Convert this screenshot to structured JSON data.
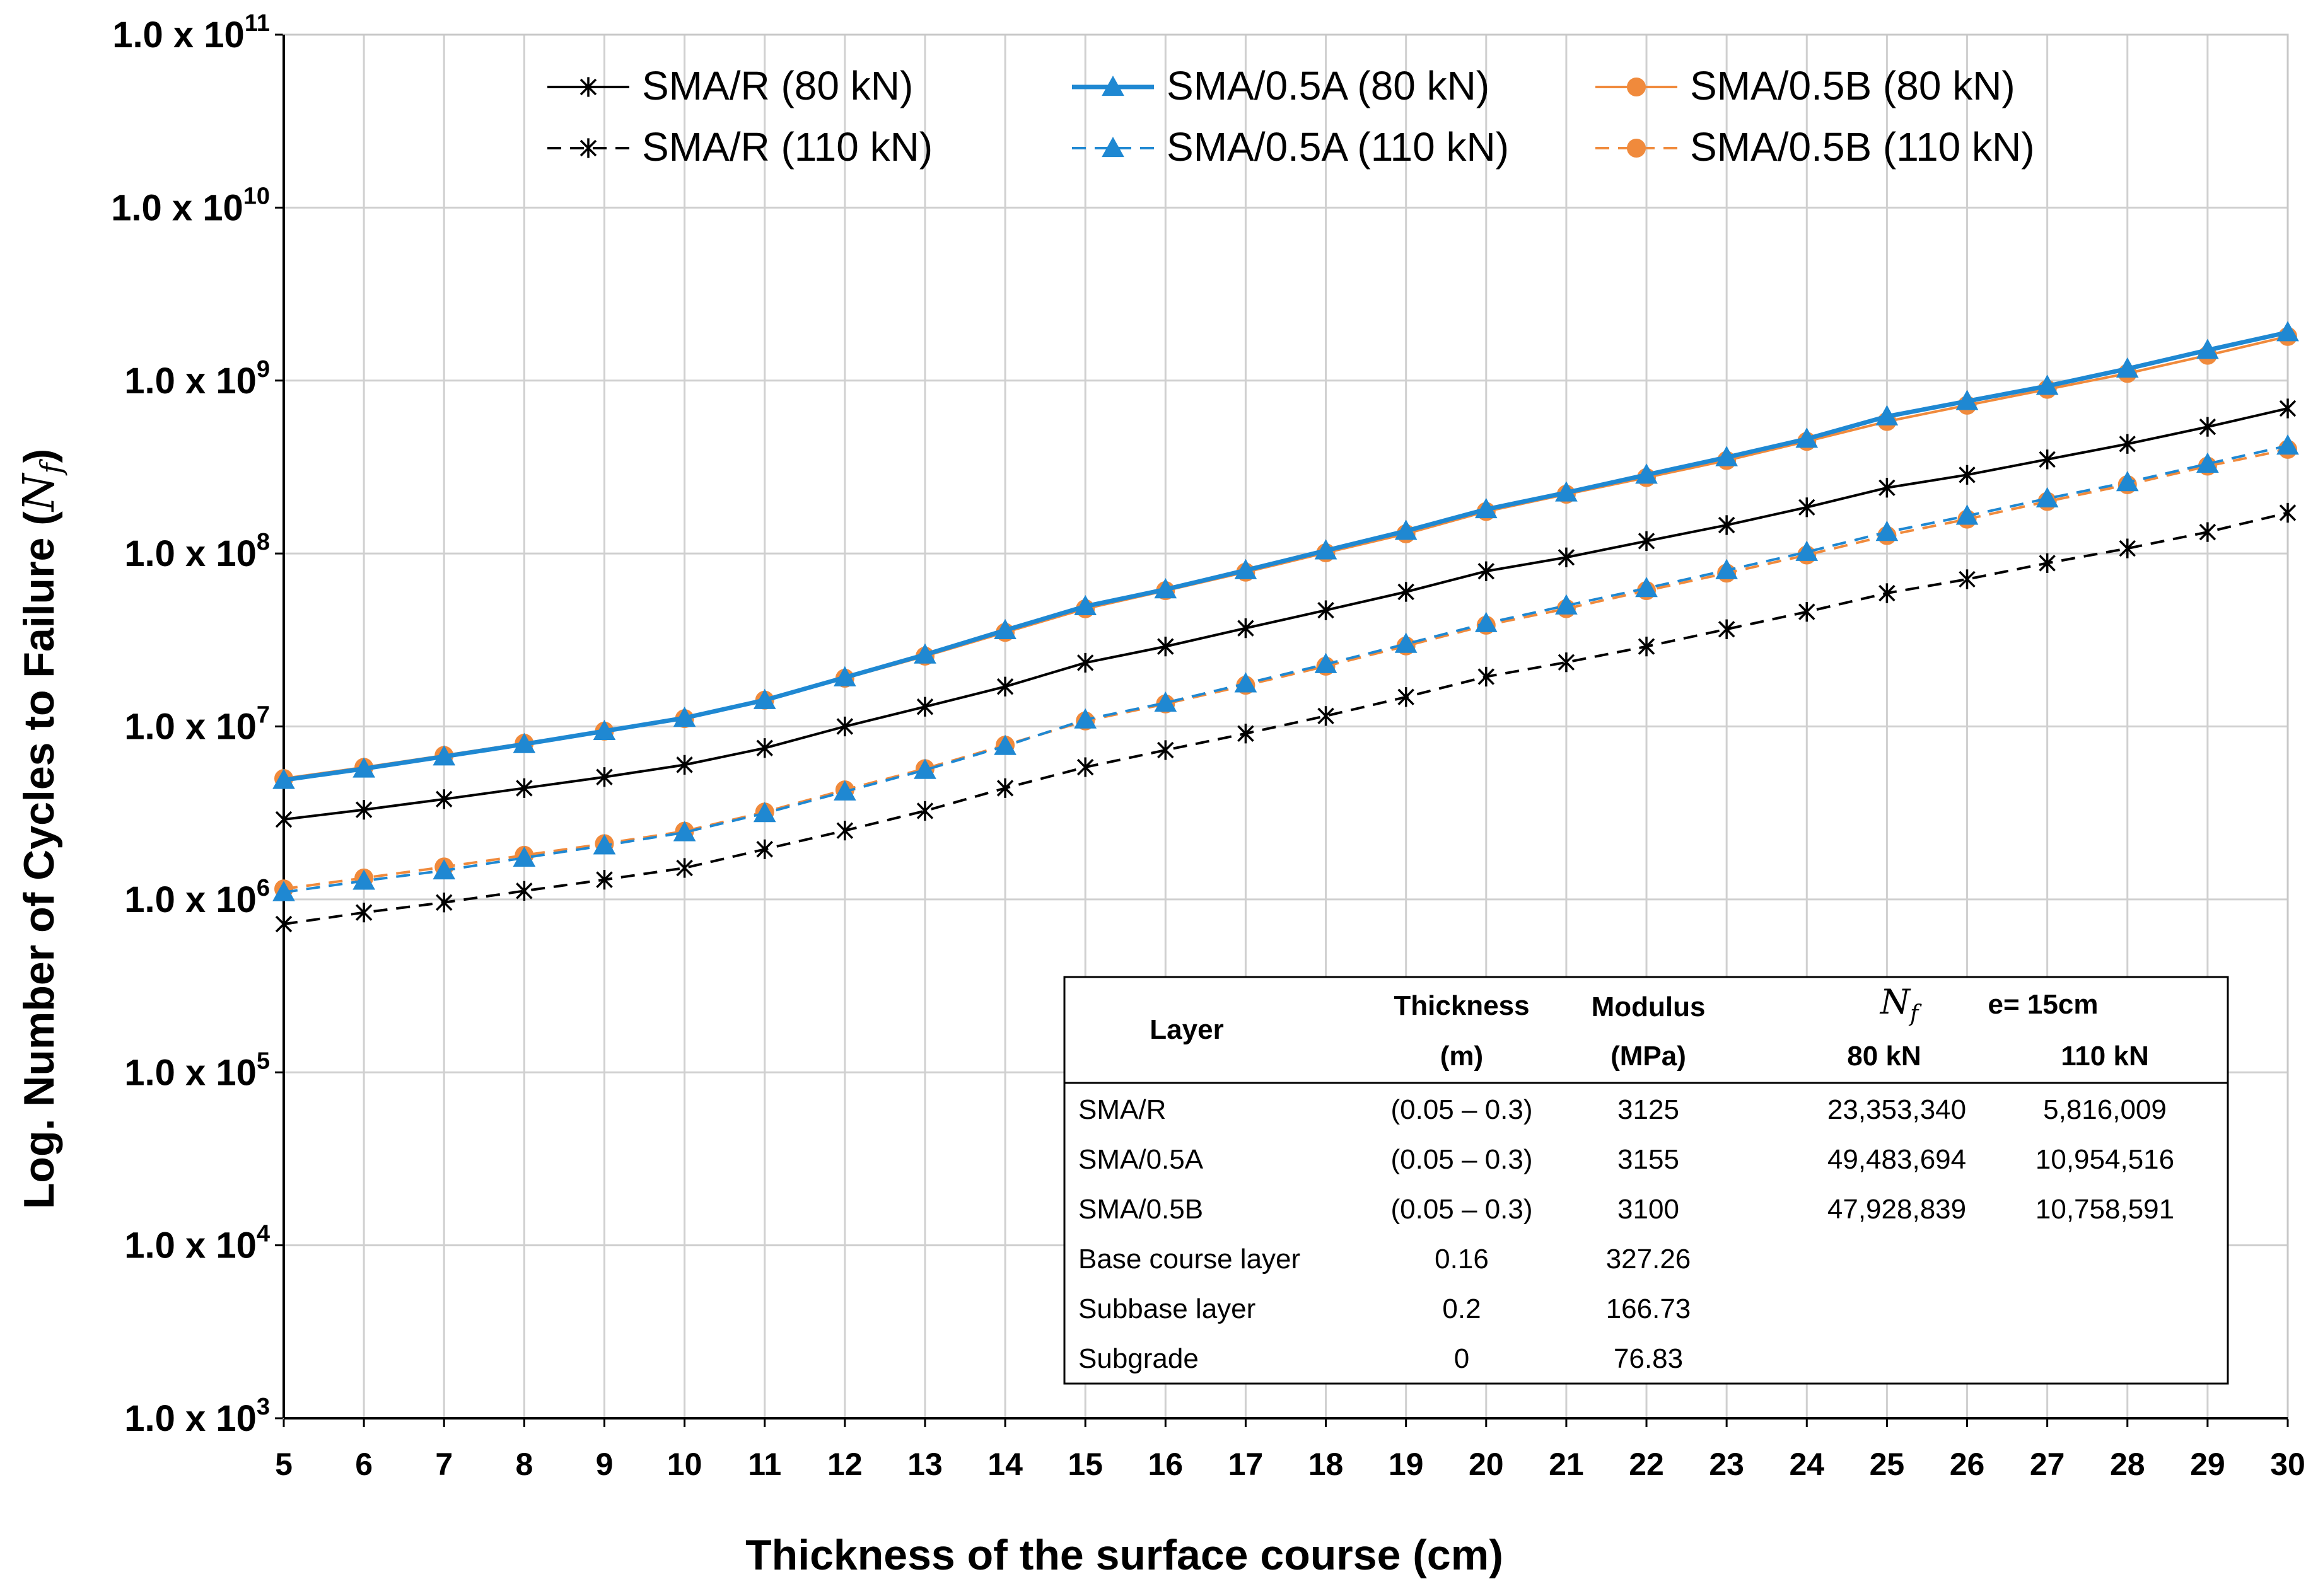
{
  "chart_data": {
    "type": "line",
    "xlabel": "Thickness of the surface course (cm)",
    "ylabel_prefix": "Log. Number of Cycles to Failure (",
    "ylabel_symbol": "N",
    "ylabel_sub": "f",
    "ylabel_suffix": ")",
    "y_scale": "log",
    "ylim": [
      1000,
      100000000000
    ],
    "xlim": [
      5,
      30
    ],
    "x": [
      5,
      6,
      7,
      8,
      9,
      10,
      11,
      12,
      13,
      14,
      15,
      16,
      17,
      18,
      19,
      20,
      21,
      22,
      23,
      24,
      25,
      26,
      27,
      28,
      29,
      30
    ],
    "y_tick_labels": [
      {
        "base": "1.0 x 10",
        "exp": "3"
      },
      {
        "base": "1.0 x 10",
        "exp": "4"
      },
      {
        "base": "1.0 x 10",
        "exp": "5"
      },
      {
        "base": "1.0 x 10",
        "exp": "6"
      },
      {
        "base": "1.0 x 10",
        "exp": "7"
      },
      {
        "base": "1.0 x 10",
        "exp": "8"
      },
      {
        "base": "1.0 x 10",
        "exp": "9"
      },
      {
        "base": "1.0 x 10",
        "exp": "10"
      },
      {
        "base": "1.0 x 10",
        "exp": "11"
      }
    ],
    "x_tick_labels": [
      "5",
      "6",
      "7",
      "8",
      "9",
      "10",
      "11",
      "12",
      "13",
      "14",
      "15",
      "16",
      "17",
      "18",
      "19",
      "20",
      "21",
      "22",
      "23",
      "24",
      "25",
      "26",
      "27",
      "28",
      "29",
      "30"
    ],
    "grid": true,
    "legend_position": "top-center",
    "series": [
      {
        "name": "SMA/R (80 kN)",
        "color": "#000000",
        "dash": "solid",
        "marker": "asterisk",
        "values": [
          2900000.0,
          3300000.0,
          3800000.0,
          4400000.0,
          5100000.0,
          6000000.0,
          7500000.0,
          10000000.0,
          13000000.0,
          17000000.0,
          23353000.0,
          29000000.0,
          37000000.0,
          47000000.0,
          60000000.0,
          79000000.0,
          95000000.0,
          118000000.0,
          146000000.0,
          185000000.0,
          240000000.0,
          285000000.0,
          350000000.0,
          430000000.0,
          540000000.0,
          690000000.0
        ]
      },
      {
        "name": "SMA/0.5A (80 kN)",
        "color": "#1f88d2",
        "dash": "solid",
        "marker": "triangle",
        "values": [
          4900000.0,
          5700000.0,
          6700000.0,
          7900000.0,
          9400000.0,
          11200000.0,
          14200000.0,
          19200000.0,
          26000000.0,
          36000000.0,
          49484000.0,
          62000000.0,
          80000000.0,
          104000000.0,
          135000000.0,
          180000000.0,
          225000000.0,
          285000000.0,
          360000000.0,
          460000000.0,
          620000000.0,
          760000000.0,
          930000000.0,
          1170000000.0,
          1500000000.0,
          1900000000.0
        ]
      },
      {
        "name": "SMA/0.5B (80 kN)",
        "color": "#f08a3c",
        "dash": "solid",
        "marker": "circle",
        "values": [
          5000000.0,
          5800000.0,
          6800000.0,
          8000000.0,
          9400000.0,
          11100000.0,
          14200000.0,
          19000000.0,
          25500000.0,
          35000000.0,
          47929000.0,
          61000000.0,
          78000000.0,
          101000000.0,
          130000000.0,
          175000000.0,
          220000000.0,
          275000000.0,
          345000000.0,
          445000000.0,
          580000000.0,
          720000000.0,
          890000000.0,
          1100000000.0,
          1400000000.0,
          1800000000.0
        ]
      },
      {
        "name": "SMA/R (110 kN)",
        "color": "#000000",
        "dash": "dashed",
        "marker": "asterisk",
        "values": [
          720000.0,
          840000.0,
          960000.0,
          1120000.0,
          1300000.0,
          1520000.0,
          1950000.0,
          2500000.0,
          3250000.0,
          4400000.0,
          5816000.0,
          7300000.0,
          9100000.0,
          11500000.0,
          14800000.0,
          19400000.0,
          23500000.0,
          29000000.0,
          36500000.0,
          46000000.0,
          59000000.0,
          71000000.0,
          88000000.0,
          107000000.0,
          133000000.0,
          172000000.0
        ]
      },
      {
        "name": "SMA/0.5A (110 kN)",
        "color": "#1f88d2",
        "dash": "dashed",
        "marker": "triangle",
        "values": [
          1100000.0,
          1280000.0,
          1470000.0,
          1740000.0,
          2050000.0,
          2440000.0,
          3150000.0,
          4200000.0,
          5600000.0,
          7700000.0,
          10955000.0,
          13700000.0,
          17700000.0,
          22900000.0,
          30000000.0,
          39500000.0,
          50000000.0,
          63000000.0,
          80000000.0,
          102000000.0,
          133000000.0,
          165000000.0,
          208000000.0,
          258000000.0,
          330000000.0,
          420000000.0
        ]
      },
      {
        "name": "SMA/0.5B (110 kN)",
        "color": "#f08a3c",
        "dash": "dashed",
        "marker": "circle",
        "values": [
          1150000.0,
          1330000.0,
          1540000.0,
          1800000.0,
          2100000.0,
          2480000.0,
          3200000.0,
          4300000.0,
          5700000.0,
          7800000.0,
          10759000.0,
          13500000.0,
          17300000.0,
          22300000.0,
          29200000.0,
          38500000.0,
          48000000.0,
          61000000.0,
          77000000.0,
          98000000.0,
          127000000.0,
          158000000.0,
          200000000.0,
          250000000.0,
          320000000.0,
          400000000.0
        ]
      }
    ]
  },
  "legend": {
    "items": [
      "SMA/R (80 kN)",
      "SMA/0.5A (80 kN)",
      "SMA/0.5B (80 kN)",
      "SMA/R (110 kN)",
      "SMA/0.5A (110 kN)",
      "SMA/0.5B (110 kN)"
    ]
  },
  "table": {
    "headers": {
      "layer": "Layer",
      "thickness": "Thickness",
      "thickness_unit": "(m)",
      "modulus": "Modulus",
      "modulus_unit": "(MPa)",
      "nf_symbol": "N",
      "nf_sub": "f",
      "nf_condition": "e= 15cm",
      "load_80": "80 kN",
      "load_110": "110 kN"
    },
    "rows": [
      {
        "layer": "SMA/R",
        "thickness": "(0.05 – 0.3)",
        "modulus": "3125",
        "nf80": "23,353,340",
        "nf110": "5,816,009"
      },
      {
        "layer": "SMA/0.5A",
        "thickness": "(0.05 – 0.3)",
        "modulus": "3155",
        "nf80": "49,483,694",
        "nf110": "10,954,516"
      },
      {
        "layer": "SMA/0.5B",
        "thickness": "(0.05 – 0.3)",
        "modulus": "3100",
        "nf80": "47,928,839",
        "nf110": "10,758,591"
      },
      {
        "layer": "Base course layer",
        "thickness": "0.16",
        "modulus": "327.26",
        "nf80": "",
        "nf110": ""
      },
      {
        "layer": "Subbase layer",
        "thickness": "0.2",
        "modulus": "166.73",
        "nf80": "",
        "nf110": ""
      },
      {
        "layer": "Subgrade",
        "thickness": "0",
        "modulus": "76.83",
        "nf80": "",
        "nf110": ""
      }
    ]
  }
}
